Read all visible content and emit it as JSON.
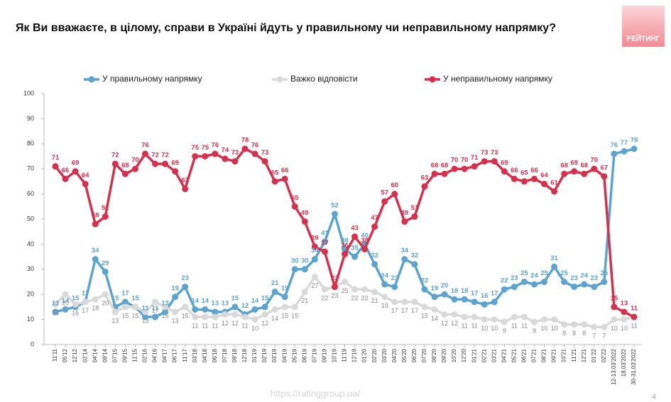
{
  "header": {
    "logo": "РЕЙТИНГ"
  },
  "footer": {
    "url": "https://ratinggroup.ua/",
    "page": "4"
  },
  "chart_data": {
    "type": "line",
    "title": "Як Ви вважаєте, в цілому, справи в Україні йдуть у правильному чи неправильному напрямку?",
    "categories": [
      "11'11",
      "05'12",
      "12'12",
      "02'14",
      "04'14",
      "09'14",
      "07'15",
      "09'15",
      "11'15",
      "02'16",
      "04'16",
      "04'17",
      "06'17",
      "11'17",
      "03'18",
      "04'18",
      "06'18",
      "07'18",
      "09'18",
      "12'18",
      "01'19",
      "02'19",
      "03'19",
      "04'19",
      "05'19",
      "06'19",
      "07'19",
      "09'19",
      "10'19",
      "11'19",
      "12'19",
      "01'20",
      "02'20",
      "03'20",
      "04'20",
      "05'20",
      "06'20",
      "07'20",
      "08'20",
      "09'20",
      "10'20",
      "12'20",
      "01'21",
      "02'21",
      "03'21",
      "04'21",
      "05'21",
      "06'21",
      "07'21",
      "08'21",
      "09'21",
      "10'21",
      "11'21",
      "12'21",
      "01'22",
      "02'22",
      "12-13.03'2022",
      "18.03'2022",
      "30-31.03'2022"
    ],
    "series": [
      {
        "name": "У правильному напрямку",
        "color": "#5ba3d0",
        "values": [
          13,
          14,
          15,
          17,
          34,
          29,
          15,
          17,
          15,
          11,
          11,
          13,
          19,
          23,
          14,
          14,
          13,
          13,
          15,
          12,
          14,
          15,
          21,
          19,
          30,
          30,
          34,
          41,
          52,
          38,
          35,
          40,
          32,
          24,
          23,
          34,
          32,
          22,
          19,
          20,
          18,
          18,
          17,
          16,
          17,
          22,
          23,
          25,
          24,
          25,
          31,
          25,
          23,
          24,
          23,
          25,
          76,
          77,
          78
        ]
      },
      {
        "name": "Важко відповісти",
        "color": "#d9d9d9",
        "values": [
          16,
          20,
          16,
          17,
          18,
          20,
          13,
          15,
          15,
          13,
          17,
          15,
          13,
          15,
          11,
          11,
          11,
          12,
          12,
          11,
          10,
          12,
          14,
          15,
          15,
          21,
          27,
          22,
          23,
          25,
          22,
          22,
          21,
          19,
          17,
          17,
          17,
          15,
          14,
          12,
          12,
          11,
          11,
          10,
          10,
          9,
          11,
          11,
          9,
          10,
          10,
          8,
          8,
          8,
          7,
          7,
          10,
          10,
          11
        ]
      },
      {
        "name": "У неправильному напрямку",
        "color": "#d6304c",
        "values": [
          71,
          66,
          69,
          64,
          48,
          51,
          72,
          68,
          70,
          76,
          72,
          72,
          69,
          62,
          75,
          75,
          76,
          74,
          73,
          78,
          76,
          73,
          65,
          66,
          55,
          49,
          39,
          37,
          23,
          36,
          43,
          38,
          47,
          57,
          60,
          49,
          51,
          63,
          68,
          68,
          70,
          70,
          71,
          73,
          73,
          69,
          66,
          65,
          66,
          64,
          61,
          68,
          69,
          68,
          70,
          67,
          15,
          13,
          11
        ]
      }
    ],
    "ylim": [
      0,
      100
    ],
    "yticks": [
      0,
      10,
      20,
      30,
      40,
      50,
      60,
      70,
      80,
      90,
      100
    ],
    "grid": false,
    "legend": "top"
  }
}
